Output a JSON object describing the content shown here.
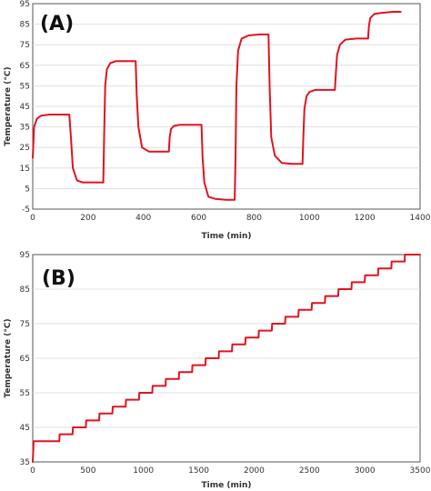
{
  "chart_data": [
    {
      "type": "line",
      "panel_label": "(A)",
      "title": "",
      "xlabel": "Time (min)",
      "ylabel": "Temperature (°C)",
      "xlim": [
        0,
        1400
      ],
      "ylim": [
        -5,
        95
      ],
      "xticks": [
        0,
        200,
        400,
        600,
        800,
        1000,
        1200,
        1400
      ],
      "yticks": [
        -5,
        5,
        15,
        25,
        35,
        45,
        55,
        65,
        75,
        85,
        95
      ],
      "grid": "horizontal",
      "color": "#e0141e",
      "series": [
        {
          "x": [
            0,
            5,
            15,
            30,
            60,
            100,
            132,
            138,
            145,
            160,
            180,
            220,
            255,
            258,
            262,
            268,
            280,
            300,
            340,
            372,
            376,
            382,
            395,
            420,
            460,
            492,
            495,
            500,
            510,
            530,
            570,
            610,
            614,
            620,
            635,
            660,
            700,
            730,
            733,
            736,
            742,
            755,
            780,
            820,
            852,
            856,
            862,
            875,
            900,
            940,
            975,
            978,
            982,
            990,
            1000,
            1020,
            1060,
            1092,
            1096,
            1100,
            1110,
            1130,
            1170,
            1212,
            1215,
            1220,
            1235,
            1260,
            1300,
            1330
          ],
          "y": [
            20,
            35,
            39,
            40.5,
            41,
            41,
            41,
            30,
            15,
            9,
            8,
            8,
            8,
            30,
            55,
            63,
            66,
            67,
            67,
            67,
            50,
            35,
            25,
            23,
            23,
            23,
            30,
            34,
            35.5,
            36,
            36,
            36,
            20,
            8,
            1,
            0,
            -0.5,
            -0.5,
            20,
            55,
            72,
            78,
            79.5,
            80,
            80,
            55,
            30,
            21,
            17.5,
            17,
            17,
            30,
            44,
            50,
            52,
            53,
            53,
            53,
            62,
            70,
            75,
            77.5,
            78,
            78,
            84,
            88,
            90,
            90.5,
            91,
            91
          ]
        }
      ]
    },
    {
      "type": "line",
      "panel_label": "(B)",
      "title": "",
      "xlabel": "Time (min)",
      "ylabel": "Temperature (°C)",
      "xlim": [
        0,
        3500
      ],
      "ylim": [
        35,
        95
      ],
      "xticks": [
        0,
        500,
        1000,
        1500,
        2000,
        2500,
        3000,
        3500
      ],
      "yticks": [
        35,
        45,
        55,
        65,
        75,
        85,
        95
      ],
      "grid": "horizontal",
      "color": "#e0141e",
      "series": [
        {
          "step_start_min": 0,
          "step_duration_min": 120,
          "step_increment_c": 2,
          "y": [
            35,
            41,
            43,
            45,
            47,
            49,
            51,
            53,
            55,
            57,
            59,
            61,
            63,
            65,
            67,
            69,
            71,
            73,
            75,
            77,
            79,
            81,
            83,
            85,
            87,
            89,
            91,
            93,
            95,
            95
          ],
          "x_end": 3500
        }
      ]
    }
  ]
}
